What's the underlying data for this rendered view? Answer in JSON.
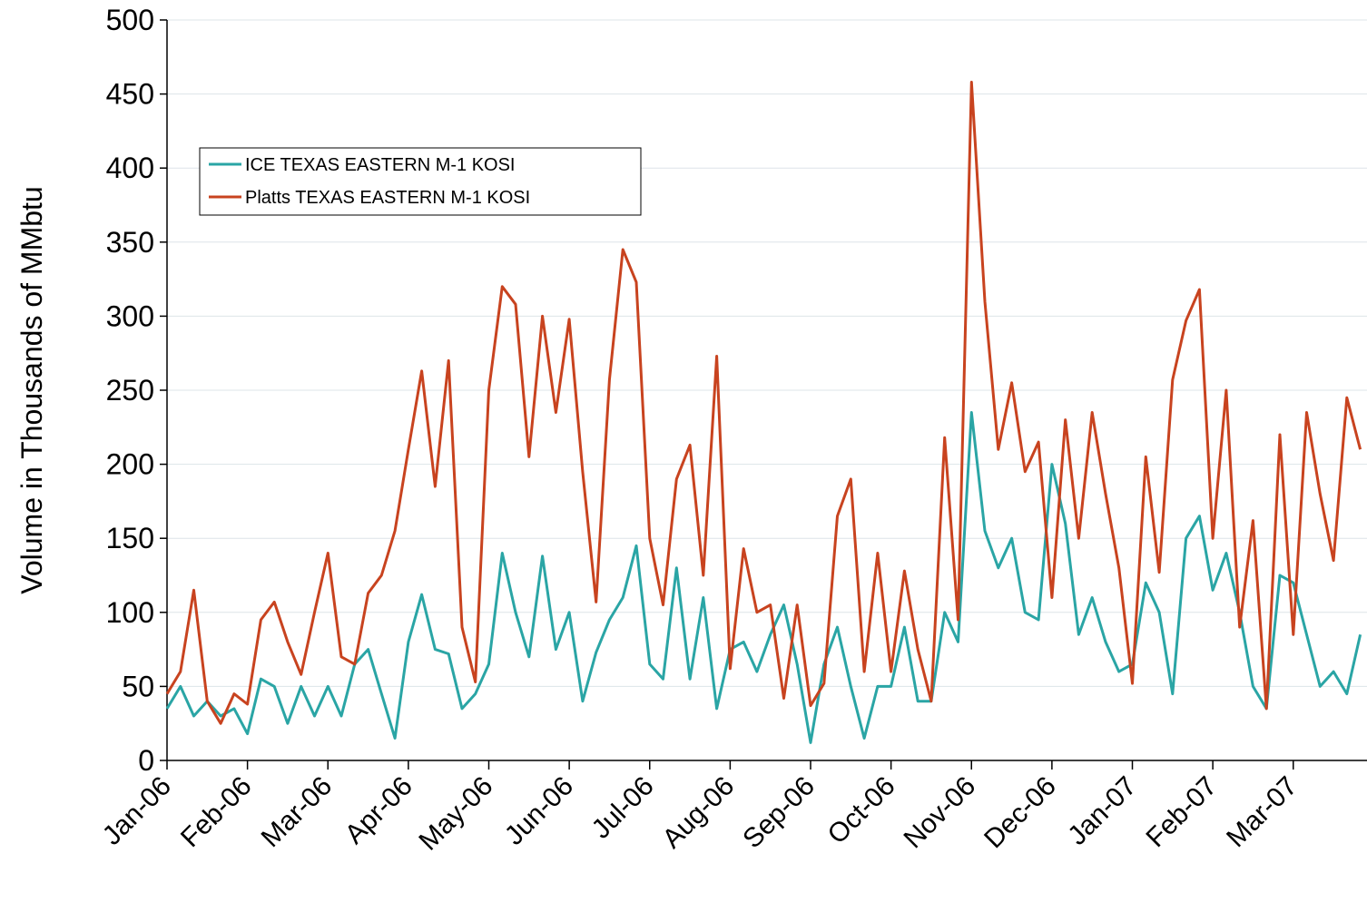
{
  "chart_data": {
    "type": "line",
    "y_label": "Volume in Thousands of MMbtu",
    "categories": [
      "Jan-06",
      null,
      null,
      null,
      null,
      null,
      "Feb-06",
      null,
      null,
      null,
      null,
      null,
      "Mar-06",
      null,
      null,
      null,
      null,
      null,
      "Apr-06",
      null,
      null,
      null,
      null,
      null,
      "May-06",
      null,
      null,
      null,
      null,
      null,
      "Jun-06",
      null,
      null,
      null,
      null,
      null,
      "Jul-06",
      null,
      null,
      null,
      null,
      null,
      "Aug-06",
      null,
      null,
      null,
      null,
      null,
      "Sep-06",
      null,
      null,
      null,
      null,
      null,
      "Oct-06",
      null,
      null,
      null,
      null,
      null,
      "Nov-06",
      null,
      null,
      null,
      null,
      null,
      "Dec-06",
      null,
      null,
      null,
      null,
      null,
      "Jan-07",
      null,
      null,
      null,
      null,
      null,
      "Feb-07",
      null,
      null,
      null,
      null,
      null,
      "Mar-07",
      null,
      null,
      null,
      null,
      null
    ],
    "series": [
      {
        "name": "ICE TEXAS EASTERN M-1 KOSI",
        "color": "#2aa5a5",
        "values": [
          35,
          50,
          30,
          40,
          30,
          35,
          18,
          55,
          50,
          25,
          50,
          30,
          50,
          30,
          65,
          75,
          45,
          15,
          80,
          112,
          75,
          72,
          35,
          45,
          65,
          140,
          100,
          70,
          138,
          75,
          100,
          40,
          73,
          95,
          110,
          145,
          65,
          55,
          130,
          55,
          110,
          35,
          75,
          80,
          60,
          85,
          105,
          65,
          12,
          65,
          90,
          50,
          15,
          50,
          50,
          90,
          40,
          40,
          100,
          80,
          235,
          155,
          130,
          150,
          100,
          95,
          200,
          160,
          85,
          110,
          80,
          60,
          65,
          120,
          100,
          45,
          150,
          165,
          115,
          140,
          100,
          50,
          35,
          125,
          120,
          85,
          50,
          60,
          45,
          85
        ]
      },
      {
        "name": "Platts TEXAS EASTERN M-1 KOSI",
        "color": "#c8431f",
        "values": [
          45,
          60,
          115,
          40,
          25,
          45,
          38,
          95,
          107,
          80,
          58,
          100,
          140,
          70,
          65,
          113,
          125,
          155,
          210,
          263,
          185,
          270,
          90,
          53,
          250,
          320,
          308,
          205,
          300,
          235,
          298,
          195,
          107,
          257,
          345,
          323,
          150,
          105,
          190,
          213,
          125,
          273,
          62,
          143,
          100,
          105,
          42,
          105,
          37,
          52,
          165,
          190,
          60,
          140,
          60,
          128,
          75,
          40,
          218,
          95,
          458,
          310,
          210,
          255,
          195,
          215,
          110,
          230,
          150,
          235,
          180,
          130,
          52,
          205,
          127,
          257,
          297,
          318,
          150,
          250,
          90,
          162,
          35,
          220,
          85,
          235,
          180,
          135,
          245,
          210
        ]
      }
    ],
    "ylim": [
      0,
      500
    ],
    "yticks": [
      0,
      50,
      100,
      150,
      200,
      250,
      300,
      350,
      400,
      450,
      500
    ],
    "grid": true,
    "legend": "upper left"
  }
}
